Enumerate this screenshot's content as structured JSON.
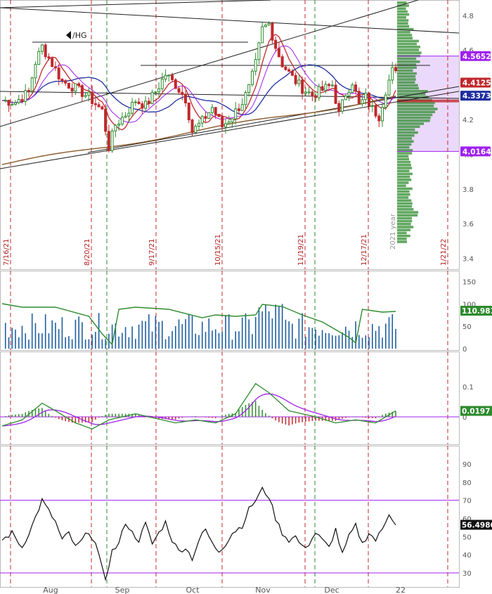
{
  "symbol": "/HG",
  "chart_data": [
    {
      "panel": "price",
      "type": "candlestick",
      "y_range": [
        3.35,
        4.88
      ],
      "y_ticks": [
        "4.8",
        "4.6",
        "4.4",
        "4.2",
        "4.0",
        "3.8",
        "3.6",
        "3.4"
      ],
      "marker_tags": [
        {
          "label": "4.5652",
          "value": 4.5652,
          "color": "#a020f0"
        },
        {
          "label": "4.4125",
          "value": 4.4125,
          "color": "#c0282d"
        },
        {
          "label": "4.3373",
          "value": 4.3373,
          "color": "#1f2fa0"
        },
        {
          "label": "4.0164",
          "value": 4.0164,
          "color": "#a020f0"
        }
      ],
      "date_markers": [
        "7/16/21",
        "8/20/21",
        "9/17/21",
        "10/15/21",
        "11/19/21",
        "12/17/21",
        "1/21/22"
      ],
      "profile_label": "2021 year",
      "volume_profile_range": [
        3.5,
        4.88
      ],
      "value_area": [
        4.0164,
        4.5652
      ],
      "colors": {
        "up": "#2e8b2e",
        "down": "#c0282d",
        "sma_fast": "#c0282d",
        "sma_slow": "#1f2fa0",
        "long_ma": "#8b5a2b",
        "profile": "#2e8b2e",
        "value_area": "#a020f0"
      }
    },
    {
      "panel": "volume",
      "type": "bar",
      "y_ticks": [
        "150",
        "100",
        "50",
        "0"
      ],
      "last_value_label": "110.981",
      "last_value": 110.981,
      "colors": {
        "bars": "#1f5fa0",
        "line": "#2e8b2e"
      }
    },
    {
      "panel": "macd",
      "type": "line",
      "y_ticks": [
        "0.1",
        "0"
      ],
      "last_value_label": "0.0197",
      "last_value": 0.0197,
      "colors": {
        "macd": "#2e8b2e",
        "signal": "#a020f0",
        "hist_up": "#2e8b2e",
        "hist_down": "#c0282d"
      }
    },
    {
      "panel": "rsi",
      "type": "line",
      "y_ticks": [
        "90",
        "80",
        "70",
        "60",
        "50",
        "40",
        "30"
      ],
      "overbought": 70,
      "oversold": 30,
      "last_value_label": "56.4986",
      "last_value": 56.4986,
      "colors": {
        "line": "#111111",
        "overbought": "#a020f0"
      }
    }
  ],
  "x_axis": {
    "months": [
      "Aug",
      "Sep",
      "Oct",
      "Nov",
      "Dec",
      "22"
    ]
  }
}
